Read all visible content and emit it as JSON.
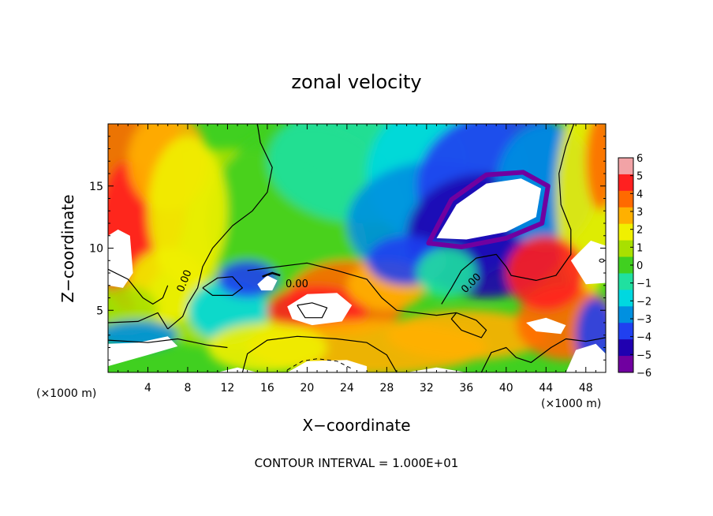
{
  "chart_data": {
    "type": "heatmap",
    "title": "zonal velocity",
    "xlabel": "X−coordinate",
    "ylabel": "Z−coordinate",
    "x_units": "(×1000 m)",
    "y_units": "(×1000 m)",
    "xlim": [
      0,
      50
    ],
    "ylim": [
      0,
      20
    ],
    "x_ticks": [
      4,
      8,
      12,
      16,
      20,
      24,
      28,
      32,
      36,
      40,
      44,
      48
    ],
    "x_tick_labels": [
      "4",
      "8",
      "12",
      "16",
      "20",
      "24",
      "28",
      "32",
      "36",
      "40",
      "44",
      "48"
    ],
    "y_ticks": [
      5,
      10,
      15
    ],
    "y_tick_labels": [
      "5",
      "10",
      "15"
    ],
    "colorbar": {
      "min": -6,
      "max": 6,
      "tick_labels": [
        "6",
        "5",
        "4",
        "3",
        "2",
        "1",
        "0",
        "−1",
        "−2",
        "−3",
        "−4",
        "−5",
        "−6"
      ],
      "ticks": [
        6,
        5,
        4,
        3,
        2,
        1,
        0,
        -1,
        -2,
        -3,
        -4,
        -5,
        -6
      ],
      "colors": [
        "#f2a3a6",
        "#ff2020",
        "#ff6a00",
        "#ffb000",
        "#f0f000",
        "#a8e000",
        "#40d020",
        "#20e0a0",
        "#00d8e0",
        "#0090e0",
        "#2040f0",
        "#2000b0",
        "#7000a0"
      ],
      "saturation_color": "#ffffff"
    },
    "contour_labels": [
      "0.00",
      "0.00",
      "0.00"
    ],
    "contour_interval_text": "CONTOUR INTERVAL = 1.000E+01",
    "grid": false
  }
}
